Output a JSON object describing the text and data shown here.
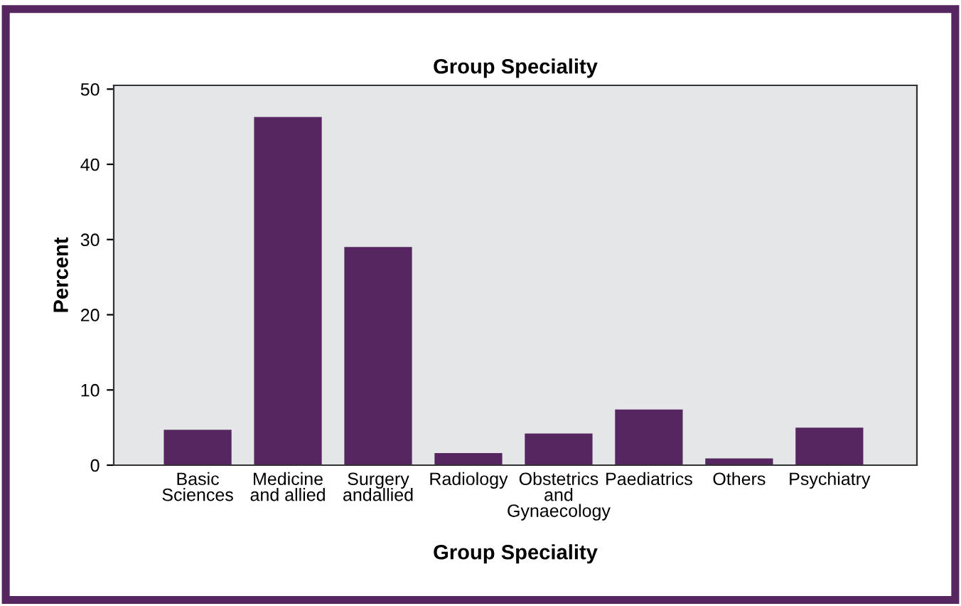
{
  "chart_data": {
    "type": "bar",
    "title": "Group Speciality",
    "xlabel": "Group Speciality",
    "ylabel": "Percent",
    "categories": [
      "Basic\nSciences",
      "Medicine\nand allied",
      "Surgery\nandallied",
      "Radiology",
      "Obstetrics\nand\nGynaecology",
      "Paediatrics",
      "Others",
      "Psychiatry"
    ],
    "values": [
      4.7,
      46.3,
      29.0,
      1.6,
      4.2,
      7.4,
      0.9,
      5.0
    ],
    "color": "#55265f",
    "ylim": [
      0,
      50.5
    ],
    "yticks": [
      0,
      10,
      20,
      30,
      40,
      50
    ],
    "grid": false
  }
}
